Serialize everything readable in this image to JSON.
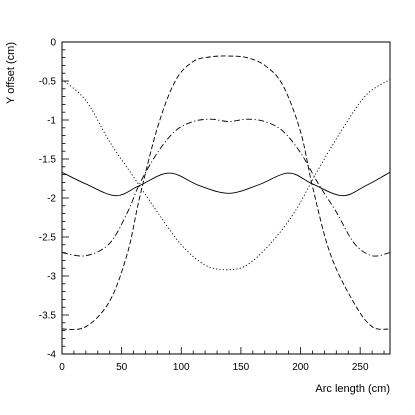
{
  "chart_data": {
    "type": "line",
    "xlabel": "Arc length (cm)",
    "ylabel": "Y offset (cm)",
    "xlim": [
      0,
      275
    ],
    "ylim": [
      -4,
      0
    ],
    "x_ticks": [
      0,
      50,
      100,
      150,
      200,
      250
    ],
    "y_ticks": [
      0,
      -0.5,
      -1,
      -1.5,
      -2,
      -2.5,
      -3,
      -3.5,
      -4
    ],
    "grid": false,
    "legend": "none",
    "series": [
      {
        "style": "solid",
        "x": [
          0,
          20,
          45,
          65,
          90,
          115,
          140,
          165,
          190,
          210,
          235,
          255,
          275
        ],
        "y": [
          -1.67,
          -1.82,
          -1.97,
          -1.84,
          -1.68,
          -1.84,
          -1.94,
          -1.83,
          -1.68,
          -1.82,
          -1.97,
          -1.84,
          -1.67
        ]
      },
      {
        "style": "dotted",
        "x": [
          0,
          20,
          40,
          60,
          80,
          100,
          120,
          138,
          155,
          175,
          195,
          215,
          235,
          255,
          275
        ],
        "y": [
          -0.48,
          -0.75,
          -1.28,
          -1.73,
          -2.18,
          -2.6,
          -2.86,
          -2.92,
          -2.86,
          -2.58,
          -2.18,
          -1.63,
          -1.12,
          -0.68,
          -0.48
        ]
      },
      {
        "style": "dash-dot",
        "x": [
          0,
          20,
          40,
          55,
          65,
          80,
          95,
          110,
          125,
          140,
          155,
          170,
          185,
          200,
          215,
          230,
          245,
          260,
          275
        ],
        "y": [
          -2.7,
          -2.74,
          -2.58,
          -2.18,
          -1.82,
          -1.42,
          -1.14,
          -1.02,
          -0.99,
          -1.02,
          -0.99,
          -1.02,
          -1.14,
          -1.42,
          -1.82,
          -2.18,
          -2.58,
          -2.74,
          -2.7
        ]
      },
      {
        "style": "dashed",
        "x": [
          0,
          20,
          40,
          55,
          65,
          80,
          95,
          110,
          125,
          140,
          155,
          170,
          185,
          200,
          210,
          225,
          245,
          260,
          275
        ],
        "y": [
          -3.68,
          -3.65,
          -3.32,
          -2.7,
          -2.0,
          -1.1,
          -0.5,
          -0.25,
          -0.19,
          -0.18,
          -0.2,
          -0.3,
          -0.55,
          -1.15,
          -1.85,
          -2.72,
          -3.35,
          -3.65,
          -3.68
        ]
      }
    ]
  }
}
